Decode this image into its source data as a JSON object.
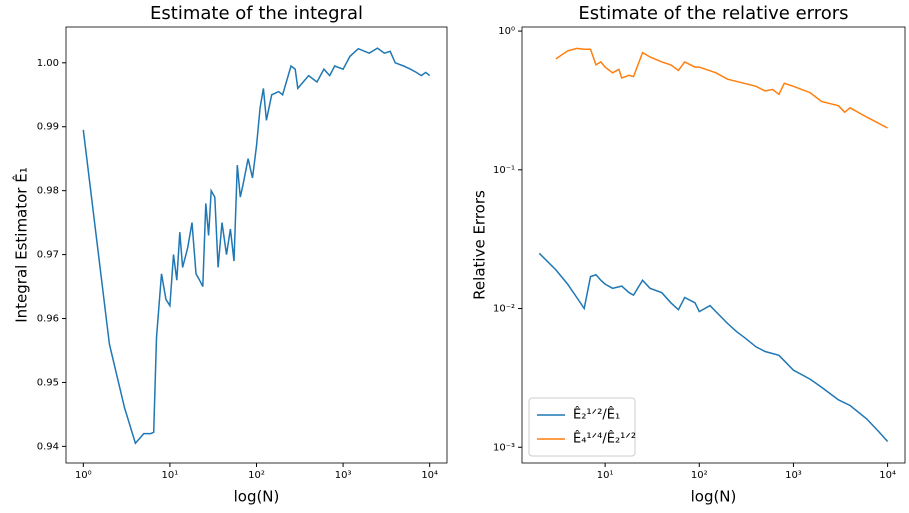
{
  "chart_data": [
    {
      "type": "line",
      "title": "Estimate of the integral",
      "xlabel": "log(N)",
      "ylabel": "Integral Estimator Ê₁",
      "xscale": "log",
      "color": "#1f77b4",
      "x": [
        1,
        2,
        3,
        4,
        5,
        6,
        6.5,
        7,
        8,
        9,
        10,
        11,
        12,
        13,
        14,
        16,
        18,
        20,
        22,
        24,
        26,
        28,
        30,
        33,
        36,
        40,
        45,
        50,
        55,
        60,
        65,
        70,
        80,
        90,
        100,
        110,
        120,
        130,
        150,
        180,
        200,
        250,
        280,
        300,
        400,
        500,
        600,
        700,
        800,
        1000,
        1200,
        1500,
        2000,
        2500,
        3000,
        3500,
        4000,
        5000,
        6000,
        7000,
        8000,
        9000,
        10000
      ],
      "values": [
        0.9895,
        0.956,
        0.946,
        0.9405,
        0.942,
        0.942,
        0.9422,
        0.957,
        0.967,
        0.963,
        0.962,
        0.97,
        0.966,
        0.9735,
        0.968,
        0.971,
        0.975,
        0.967,
        0.966,
        0.965,
        0.978,
        0.973,
        0.98,
        0.979,
        0.968,
        0.975,
        0.97,
        0.974,
        0.969,
        0.984,
        0.979,
        0.981,
        0.985,
        0.982,
        0.987,
        0.993,
        0.996,
        0.991,
        0.995,
        0.9955,
        0.995,
        0.9995,
        0.999,
        0.996,
        0.998,
        0.997,
        0.999,
        0.998,
        0.9995,
        0.999,
        1.001,
        1.0022,
        1.0015,
        1.0023,
        1.0015,
        1.0018,
        1.0,
        0.9995,
        0.999,
        0.9985,
        0.998,
        0.9985,
        0.998
      ],
      "xlim": [
        0.631,
        15849
      ],
      "ylim": [
        0.9374,
        1.0056
      ],
      "xticks": [
        {
          "value": 1,
          "label": "10⁰"
        },
        {
          "value": 10,
          "label": "10¹"
        },
        {
          "value": 100,
          "label": "10²"
        },
        {
          "value": 1000,
          "label": "10³"
        },
        {
          "value": 10000,
          "label": "10⁴"
        }
      ],
      "yticks": [
        0.94,
        0.95,
        0.96,
        0.97,
        0.98,
        0.99,
        {
          "value": 1,
          "label": "1.00"
        }
      ]
    },
    {
      "type": "line",
      "title": "Estimate of the relative errors",
      "xlabel": "log(N)",
      "ylabel": "Relative Errors",
      "xscale": "log",
      "yscale": "log",
      "legend": "lower left",
      "series": [
        {
          "name": "Ê₂¹ᐟ²/Ê₁",
          "color": "#1f77b4",
          "x": [
            2,
            3,
            4,
            5,
            6,
            7,
            8,
            9,
            10,
            12,
            15,
            18,
            20,
            25,
            30,
            40,
            50,
            60,
            70,
            90,
            100,
            130,
            150,
            200,
            250,
            300,
            400,
            500,
            700,
            800,
            1000,
            1500,
            2000,
            3000,
            4000,
            6000,
            8000,
            10000
          ],
          "values": [
            0.025,
            0.019,
            0.015,
            0.012,
            0.01,
            0.017,
            0.0175,
            0.016,
            0.015,
            0.014,
            0.0145,
            0.013,
            0.0125,
            0.016,
            0.014,
            0.013,
            0.011,
            0.0098,
            0.012,
            0.011,
            0.0095,
            0.0105,
            0.0095,
            0.0078,
            0.0068,
            0.0062,
            0.0053,
            0.0049,
            0.0046,
            0.0042,
            0.0036,
            0.0031,
            0.0027,
            0.0022,
            0.002,
            0.0016,
            0.0013,
            0.0011
          ]
        },
        {
          "name": "Ê₄¹ᐟ⁴/Ê₂¹ᐟ²",
          "color": "#ff7f0e",
          "x": [
            3,
            4,
            5,
            6,
            7,
            8,
            9,
            10,
            12,
            14,
            15,
            18,
            20,
            25,
            30,
            40,
            50,
            60,
            70,
            90,
            100,
            150,
            200,
            300,
            400,
            500,
            600,
            700,
            800,
            1000,
            1500,
            2000,
            3000,
            3500,
            4000,
            6000,
            10000
          ],
          "values": [
            0.63,
            0.72,
            0.75,
            0.74,
            0.74,
            0.57,
            0.6,
            0.55,
            0.5,
            0.53,
            0.46,
            0.48,
            0.47,
            0.7,
            0.65,
            0.6,
            0.57,
            0.52,
            0.6,
            0.55,
            0.55,
            0.5,
            0.45,
            0.42,
            0.4,
            0.37,
            0.38,
            0.35,
            0.42,
            0.4,
            0.36,
            0.31,
            0.29,
            0.26,
            0.28,
            0.24,
            0.2
          ]
        }
      ],
      "xlim": [
        1.31,
        15300
      ],
      "ylim": [
        0.00077,
        1.07
      ],
      "xticks": [
        {
          "value": 10,
          "label": "10¹"
        },
        {
          "value": 100,
          "label": "10²"
        },
        {
          "value": 1000,
          "label": "10³"
        },
        {
          "value": 10000,
          "label": "10⁴"
        }
      ],
      "yticks": [
        {
          "value": 0.001,
          "label": "10⁻³"
        },
        {
          "value": 0.01,
          "label": "10⁻²"
        },
        {
          "value": 0.1,
          "label": "10⁻¹"
        },
        {
          "value": 1,
          "label": "10⁰"
        }
      ]
    }
  ]
}
